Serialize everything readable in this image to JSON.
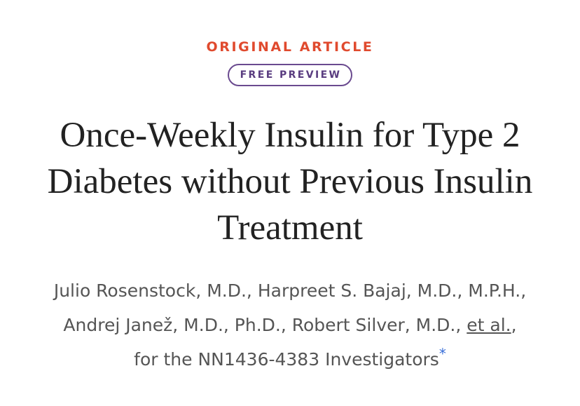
{
  "article": {
    "type_label": "ORIGINAL ARTICLE",
    "badge_label": "FREE PREVIEW",
    "title": "Once-Weekly Insulin for Type 2 Diabetes without Previous Insulin Treatment",
    "authors_text": "Julio Rosenstock, M.D., Harpreet S. Bajaj, M.D., M.P.H., Andrej Janež, M.D., Ph.D., Robert Silver, M.D., ",
    "et_al_label": "et al.",
    "group_text": ", for the NN1436-4383 Investigators",
    "footnote_marker": "*"
  },
  "colors": {
    "type_label": "#e04a2e",
    "badge_border": "#6a4a8f",
    "badge_text": "#5a3d80",
    "title_text": "#222222",
    "author_text": "#555555",
    "footnote_marker": "#3a6fd8"
  }
}
